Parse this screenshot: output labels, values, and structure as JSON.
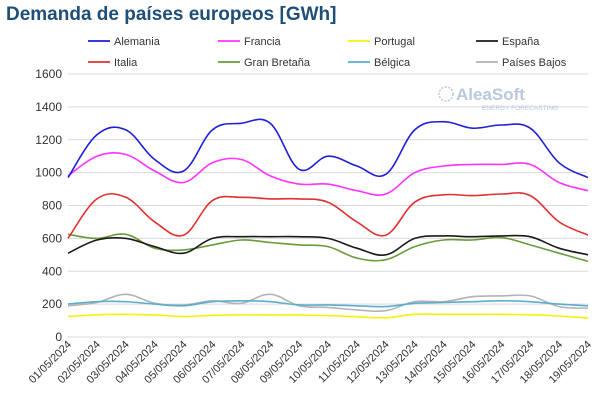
{
  "chart_data": {
    "type": "line",
    "title": "Demanda de países europeos [GWh]",
    "xlabel": "",
    "ylabel": "",
    "ylim": [
      0,
      1600
    ],
    "yticks": [
      0,
      200,
      400,
      600,
      800,
      1000,
      1200,
      1400,
      1600
    ],
    "grid": true,
    "legend_position": "top",
    "x": [
      "01/05/2024",
      "02/05/2024",
      "03/05/2024",
      "04/05/2024",
      "05/05/2024",
      "06/05/2024",
      "07/05/2024",
      "08/05/2024",
      "09/05/2024",
      "10/05/2024",
      "11/05/2024",
      "12/05/2024",
      "13/05/2024",
      "14/05/2024",
      "15/05/2024",
      "16/05/2024",
      "17/05/2024",
      "18/05/2024",
      "19/05/2024"
    ],
    "series": [
      {
        "name": "Alemania",
        "color": "#1f1fd6",
        "values": [
          970,
          1230,
          1260,
          1080,
          1010,
          1260,
          1300,
          1300,
          1020,
          1100,
          1040,
          990,
          1260,
          1310,
          1270,
          1290,
          1270,
          1060,
          970
        ]
      },
      {
        "name": "Francia",
        "color": "#ff33ff",
        "values": [
          980,
          1100,
          1110,
          1010,
          940,
          1060,
          1080,
          980,
          930,
          930,
          890,
          870,
          1000,
          1040,
          1050,
          1050,
          1050,
          940,
          890
        ]
      },
      {
        "name": "Portugal",
        "color": "#f2f20a",
        "values": [
          125,
          135,
          138,
          133,
          125,
          132,
          135,
          135,
          133,
          130,
          123,
          117,
          138,
          138,
          138,
          138,
          135,
          128,
          115
        ]
      },
      {
        "name": "España",
        "color": "#1a1a1a",
        "values": [
          510,
          590,
          600,
          550,
          510,
          600,
          610,
          610,
          610,
          600,
          540,
          500,
          600,
          615,
          610,
          615,
          610,
          540,
          500
        ]
      },
      {
        "name": "Italia",
        "color": "#e03030",
        "values": [
          600,
          840,
          850,
          700,
          620,
          830,
          850,
          840,
          840,
          820,
          700,
          620,
          820,
          865,
          860,
          870,
          860,
          700,
          620
        ]
      },
      {
        "name": "Gran Bretaña",
        "color": "#6a9a3a",
        "values": [
          625,
          600,
          625,
          540,
          530,
          560,
          590,
          575,
          560,
          550,
          480,
          470,
          550,
          590,
          590,
          605,
          560,
          510,
          460
        ]
      },
      {
        "name": "Bélgica",
        "color": "#5aaecd",
        "values": [
          200,
          215,
          215,
          200,
          190,
          215,
          220,
          215,
          195,
          195,
          190,
          185,
          205,
          210,
          215,
          220,
          215,
          200,
          190
        ]
      },
      {
        "name": "Países Bajos",
        "color": "#b3b3b3",
        "values": [
          190,
          210,
          260,
          205,
          195,
          220,
          205,
          260,
          190,
          180,
          165,
          160,
          215,
          215,
          245,
          250,
          250,
          185,
          175
        ]
      }
    ]
  },
  "watermark": {
    "brand": "AleaSoft",
    "tagline": "ENERGY FORECASTING"
  }
}
